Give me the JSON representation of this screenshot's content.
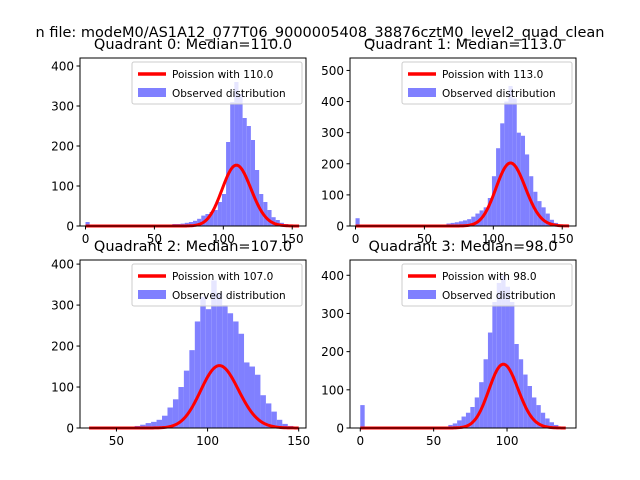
{
  "figure": {
    "suptitle": "n file: modeM0/AS1A12_077T06_9000005408_38876cztM0_level2_quad_clean"
  },
  "colors": {
    "hist": "#8080ff",
    "poisson": "#ff0000",
    "axes": "#000000"
  },
  "chart_data": [
    {
      "type": "bar",
      "title": "Quadrant 0: Median=110.0",
      "legend": {
        "placement": "upper-right",
        "line_label": "Poission with 110.0",
        "hist_label": "Observed distribution"
      },
      "xlim": [
        -4,
        160
      ],
      "ylim": [
        0,
        420
      ],
      "xticks": [
        0,
        50,
        100,
        150
      ],
      "yticks": [
        0,
        100,
        200,
        300,
        400
      ],
      "bin_width": 3,
      "bins": [
        [
          0,
          10
        ],
        [
          63,
          5
        ],
        [
          66,
          5
        ],
        [
          69,
          6
        ],
        [
          72,
          8
        ],
        [
          75,
          10
        ],
        [
          78,
          13
        ],
        [
          81,
          18
        ],
        [
          84,
          26
        ],
        [
          87,
          30
        ],
        [
          90,
          35
        ],
        [
          93,
          40
        ],
        [
          96,
          60
        ],
        [
          99,
          80
        ],
        [
          102,
          210
        ],
        [
          105,
          310
        ],
        [
          108,
          360
        ],
        [
          111,
          330
        ],
        [
          114,
          270
        ],
        [
          117,
          250
        ],
        [
          120,
          215
        ],
        [
          123,
          140
        ],
        [
          126,
          80
        ],
        [
          129,
          60
        ],
        [
          132,
          40
        ],
        [
          135,
          22
        ],
        [
          138,
          15
        ],
        [
          141,
          8
        ],
        [
          144,
          5
        ],
        [
          147,
          3
        ],
        [
          150,
          2
        ]
      ],
      "poisson": {
        "mean": 110.0,
        "x_range": [
          0,
          155
        ],
        "scale": 4000
      }
    },
    {
      "type": "bar",
      "title": "Quadrant 1: Median=113.0",
      "legend": {
        "placement": "upper-right",
        "line_label": "Poission with 113.0",
        "hist_label": "Observed distribution"
      },
      "xlim": [
        -4,
        160
      ],
      "ylim": [
        0,
        540
      ],
      "xticks": [
        0,
        50,
        100,
        150
      ],
      "yticks": [
        0,
        100,
        200,
        300,
        400,
        500
      ],
      "bin_width": 3,
      "bins": [
        [
          0,
          25
        ],
        [
          66,
          8
        ],
        [
          69,
          10
        ],
        [
          72,
          12
        ],
        [
          75,
          15
        ],
        [
          78,
          18
        ],
        [
          81,
          22
        ],
        [
          84,
          30
        ],
        [
          87,
          40
        ],
        [
          90,
          50
        ],
        [
          93,
          60
        ],
        [
          96,
          90
        ],
        [
          99,
          160
        ],
        [
          102,
          250
        ],
        [
          105,
          330
        ],
        [
          108,
          400
        ],
        [
          111,
          450
        ],
        [
          114,
          410
        ],
        [
          117,
          300
        ],
        [
          120,
          290
        ],
        [
          123,
          230
        ],
        [
          126,
          160
        ],
        [
          129,
          110
        ],
        [
          132,
          80
        ],
        [
          135,
          60
        ],
        [
          138,
          40
        ],
        [
          141,
          20
        ],
        [
          144,
          10
        ],
        [
          147,
          5
        ],
        [
          150,
          3
        ]
      ],
      "poisson": {
        "mean": 113.0,
        "x_range": [
          0,
          155
        ],
        "scale": 5400
      }
    },
    {
      "type": "bar",
      "title": "Quadrant 2: Median=107.0",
      "legend": {
        "placement": "upper-right",
        "line_label": "Poission with 107.0",
        "hist_label": "Observed distribution"
      },
      "xlim": [
        30,
        154
      ],
      "ylim": [
        0,
        410
      ],
      "xticks": [
        50,
        100,
        150
      ],
      "yticks": [
        0,
        100,
        200,
        300,
        400
      ],
      "bin_width": 3,
      "bins": [
        [
          60,
          5
        ],
        [
          63,
          8
        ],
        [
          66,
          12
        ],
        [
          69,
          15
        ],
        [
          72,
          20
        ],
        [
          75,
          30
        ],
        [
          78,
          50
        ],
        [
          81,
          70
        ],
        [
          84,
          100
        ],
        [
          87,
          140
        ],
        [
          90,
          190
        ],
        [
          93,
          260
        ],
        [
          96,
          320
        ],
        [
          99,
          290
        ],
        [
          102,
          360
        ],
        [
          105,
          330
        ],
        [
          108,
          300
        ],
        [
          111,
          280
        ],
        [
          114,
          260
        ],
        [
          117,
          230
        ],
        [
          120,
          160
        ],
        [
          123,
          150
        ],
        [
          126,
          130
        ],
        [
          129,
          80
        ],
        [
          132,
          60
        ],
        [
          135,
          40
        ],
        [
          138,
          20
        ],
        [
          141,
          10
        ],
        [
          144,
          5
        ]
      ],
      "poisson": {
        "mean": 107.0,
        "x_range": [
          35,
          150
        ],
        "scale": 3950
      }
    },
    {
      "type": "bar",
      "title": "Quadrant 3: Median=98.0",
      "legend": {
        "placement": "upper-right",
        "line_label": "Poission with 98.0",
        "hist_label": "Observed distribution"
      },
      "xlim": [
        -7,
        147
      ],
      "ylim": [
        0,
        440
      ],
      "xticks": [
        0,
        50,
        100
      ],
      "yticks": [
        0,
        100,
        200,
        300,
        400
      ],
      "bin_width": 3,
      "bins": [
        [
          0,
          60
        ],
        [
          60,
          8
        ],
        [
          63,
          12
        ],
        [
          66,
          20
        ],
        [
          69,
          30
        ],
        [
          72,
          40
        ],
        [
          75,
          55
        ],
        [
          78,
          80
        ],
        [
          81,
          120
        ],
        [
          84,
          180
        ],
        [
          87,
          250
        ],
        [
          90,
          330
        ],
        [
          93,
          380
        ],
        [
          96,
          400
        ],
        [
          99,
          370
        ],
        [
          102,
          330
        ],
        [
          105,
          220
        ],
        [
          108,
          180
        ],
        [
          111,
          140
        ],
        [
          114,
          110
        ],
        [
          117,
          80
        ],
        [
          120,
          60
        ],
        [
          123,
          40
        ],
        [
          126,
          25
        ],
        [
          129,
          15
        ],
        [
          132,
          8
        ],
        [
          135,
          4
        ]
      ],
      "poisson": {
        "mean": 98.0,
        "x_range": [
          0,
          140
        ],
        "scale": 4150
      }
    }
  ]
}
